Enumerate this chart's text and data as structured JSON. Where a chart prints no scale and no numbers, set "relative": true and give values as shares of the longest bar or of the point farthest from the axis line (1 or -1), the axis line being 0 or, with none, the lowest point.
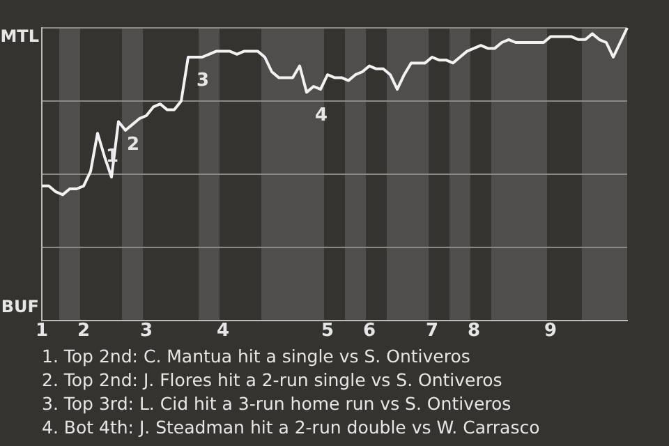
{
  "chart_data": {
    "type": "line",
    "relative": true,
    "categories": [
      "1",
      null,
      null,
      null,
      null,
      null,
      "2",
      null,
      null,
      null,
      null,
      null,
      null,
      null,
      null,
      "3",
      null,
      null,
      null,
      null,
      null,
      null,
      null,
      null,
      null,
      null,
      "4",
      null,
      null,
      null,
      null,
      null,
      null,
      null,
      null,
      null,
      null,
      null,
      null,
      null,
      null,
      "5",
      null,
      null,
      null,
      null,
      null,
      "6",
      null,
      null,
      null,
      null,
      null,
      null,
      null,
      null,
      "7",
      null,
      null,
      null,
      null,
      null,
      "8",
      null,
      null,
      null,
      null,
      null,
      null,
      null,
      null,
      null,
      null,
      "9",
      null,
      null,
      null,
      null,
      null,
      null,
      null,
      null,
      null,
      null,
      null
    ],
    "series": [
      {
        "color": "#f2f2f2",
        "values": [
          0.46,
          0.46,
          0.44,
          0.43,
          0.45,
          0.45,
          0.46,
          0.51,
          0.64,
          0.56,
          0.49,
          0.68,
          0.65,
          0.67,
          0.69,
          0.7,
          0.73,
          0.74,
          0.72,
          0.72,
          0.75,
          0.9,
          0.9,
          0.9,
          0.91,
          0.92,
          0.92,
          0.92,
          0.91,
          0.92,
          0.92,
          0.92,
          0.9,
          0.85,
          0.83,
          0.83,
          0.83,
          0.87,
          0.78,
          0.8,
          0.79,
          0.84,
          0.83,
          0.83,
          0.82,
          0.84,
          0.85,
          0.87,
          0.86,
          0.86,
          0.84,
          0.79,
          0.84,
          0.88,
          0.88,
          0.88,
          0.9,
          0.89,
          0.89,
          0.88,
          0.9,
          0.92,
          0.93,
          0.94,
          0.93,
          0.93,
          0.95,
          0.96,
          0.95,
          0.95,
          0.95,
          0.95,
          0.95,
          0.97,
          0.97,
          0.97,
          0.97,
          0.96,
          0.96,
          0.98,
          0.96,
          0.95,
          0.9,
          0.95,
          1.0
        ]
      }
    ],
    "grid": "y",
    "marker": "none",
    "legend": false,
    "annotations": [
      "MTL",
      "BUF",
      {
        "text": "1",
        "y": 0.64
      },
      {
        "text": "2",
        "y": 0.68
      },
      {
        "text": "3",
        "y": 0.9
      },
      {
        "text": "4",
        "y": 0.78
      },
      "1. Top 2nd: C. Mantua hit a single vs S. Ontiveros",
      "2. Top 2nd: J. Flores hit a 2-run single vs S. Ontiveros",
      "3. Top 3rd: L. Cid hit a 3-run home run vs S. Ontiveros",
      "4. Bot 4th: J. Steadman hit a 2-run double vs W. Carrasco"
    ]
  }
}
